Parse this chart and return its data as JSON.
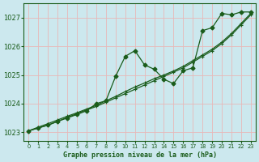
{
  "title": "Graphe pression niveau de la mer (hPa)",
  "background_color": "#cce8ee",
  "grid_color": "#b8d8de",
  "line_color": "#1a5c1a",
  "xlim": [
    -0.5,
    23.5
  ],
  "ylim": [
    1022.7,
    1027.5
  ],
  "yticks": [
    1023,
    1024,
    1025,
    1026,
    1027
  ],
  "xticks": [
    0,
    1,
    2,
    3,
    4,
    5,
    6,
    7,
    8,
    9,
    10,
    11,
    12,
    13,
    14,
    15,
    16,
    17,
    18,
    19,
    20,
    21,
    22,
    23
  ],
  "series_smooth1": {
    "x": [
      0,
      1,
      2,
      3,
      4,
      5,
      6,
      7,
      8,
      9,
      10,
      11,
      12,
      13,
      14,
      15,
      16,
      17,
      18,
      19,
      20,
      21,
      22,
      23
    ],
    "y": [
      1023.05,
      1023.15,
      1023.25,
      1023.38,
      1023.52,
      1023.65,
      1023.78,
      1023.9,
      1024.05,
      1024.2,
      1024.35,
      1024.5,
      1024.65,
      1024.8,
      1024.95,
      1025.1,
      1025.25,
      1025.45,
      1025.65,
      1025.85,
      1026.1,
      1026.4,
      1026.75,
      1027.1
    ]
  },
  "series_smooth2": {
    "x": [
      0,
      1,
      2,
      3,
      4,
      5,
      6,
      7,
      8,
      9,
      10,
      11,
      12,
      13,
      14,
      15,
      16,
      17,
      18,
      19,
      20,
      21,
      22,
      23
    ],
    "y": [
      1023.05,
      1023.18,
      1023.3,
      1023.43,
      1023.56,
      1023.68,
      1023.81,
      1023.94,
      1024.1,
      1024.25,
      1024.42,
      1024.58,
      1024.72,
      1024.87,
      1025.0,
      1025.14,
      1025.3,
      1025.5,
      1025.7,
      1025.9,
      1026.15,
      1026.45,
      1026.8,
      1027.15
    ]
  },
  "series_jagged": {
    "x": [
      0,
      1,
      2,
      3,
      4,
      5,
      6,
      7,
      8,
      9,
      10,
      11,
      12,
      13,
      14,
      15,
      16,
      17,
      18,
      19,
      20,
      21,
      22,
      23
    ],
    "y": [
      1023.05,
      1023.15,
      1023.25,
      1023.38,
      1023.5,
      1023.62,
      1023.75,
      1024.0,
      1024.1,
      1024.95,
      1025.65,
      1025.85,
      1025.35,
      1025.2,
      1024.85,
      1024.7,
      1025.15,
      1025.25,
      1026.55,
      1026.65,
      1027.15,
      1027.1,
      1027.2,
      1027.2
    ]
  }
}
